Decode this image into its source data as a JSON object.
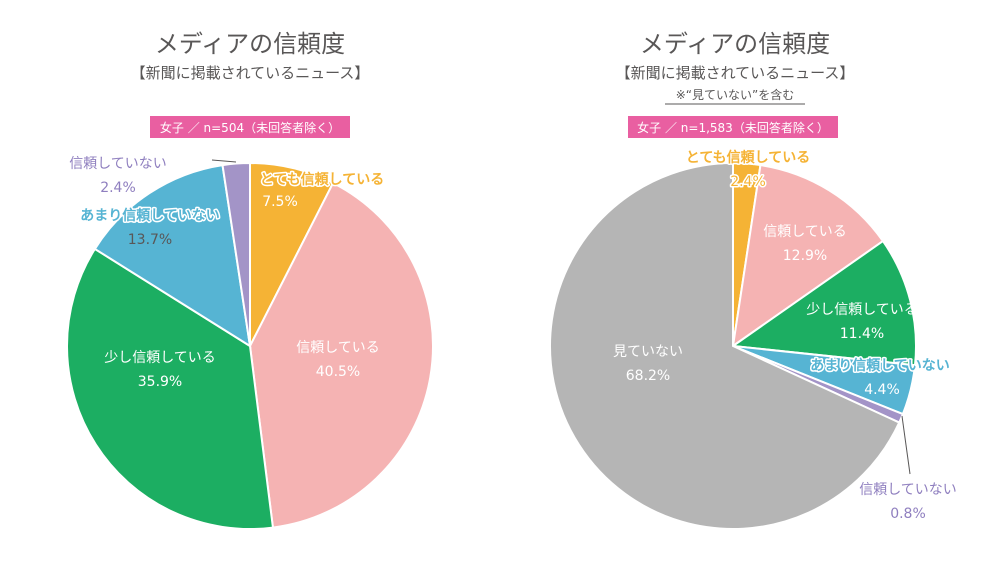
{
  "chart_data": [
    {
      "type": "pie",
      "title": "メディアの信頼度",
      "subtitle": "【新聞に掲載されているニュース】",
      "note": "",
      "sample": "女子 ／ n=504（未回答者除く）",
      "categories": [
        "とても信頼している",
        "信頼している",
        "少し信頼している",
        "あまり信頼していない",
        "信頼していない"
      ],
      "values": [
        7.5,
        40.5,
        35.9,
        13.7,
        2.4
      ],
      "value_labels": [
        "7.5%",
        "40.5%",
        "35.9%",
        "13.7%",
        "2.4%"
      ],
      "colors": [
        "#f5b335",
        "#f5b3b3",
        "#1cae62",
        "#56b4d3",
        "#a394c7"
      ],
      "label_colors": [
        "#ffffff",
        "#ffffff",
        "#ffffff",
        "#595757",
        "#8f7fbf"
      ],
      "label_name_colors": [
        "#f5b335",
        "#ffffff",
        "#ffffff",
        "#56b4d3",
        "#8f7fbf"
      ]
    },
    {
      "type": "pie",
      "title": "メディアの信頼度",
      "subtitle": "【新聞に掲載されているニュース】",
      "note": "※“見ていない”を含む",
      "sample": "女子 ／ n=1,583（未回答者除く）",
      "categories": [
        "とても信頼している",
        "信頼している",
        "少し信頼している",
        "あまり信頼していない",
        "信頼していない",
        "見ていない"
      ],
      "values": [
        2.4,
        12.9,
        11.4,
        4.4,
        0.8,
        68.2
      ],
      "value_labels": [
        "2.4%",
        "12.9%",
        "11.4%",
        "4.4%",
        "0.8%",
        "68.2%"
      ],
      "colors": [
        "#f5b335",
        "#f5b3b3",
        "#1cae62",
        "#56b4d3",
        "#a394c7",
        "#b5b5b5"
      ],
      "label_colors": [
        "#f5b335",
        "#ffffff",
        "#ffffff",
        "#ffffff",
        "#8f7fbf",
        "#ffffff"
      ],
      "label_name_colors": [
        "#f5b335",
        "#ffffff",
        "#ffffff",
        "#56b4d3",
        "#8f7fbf",
        "#ffffff"
      ]
    }
  ],
  "badge_color": "#e95fa1"
}
